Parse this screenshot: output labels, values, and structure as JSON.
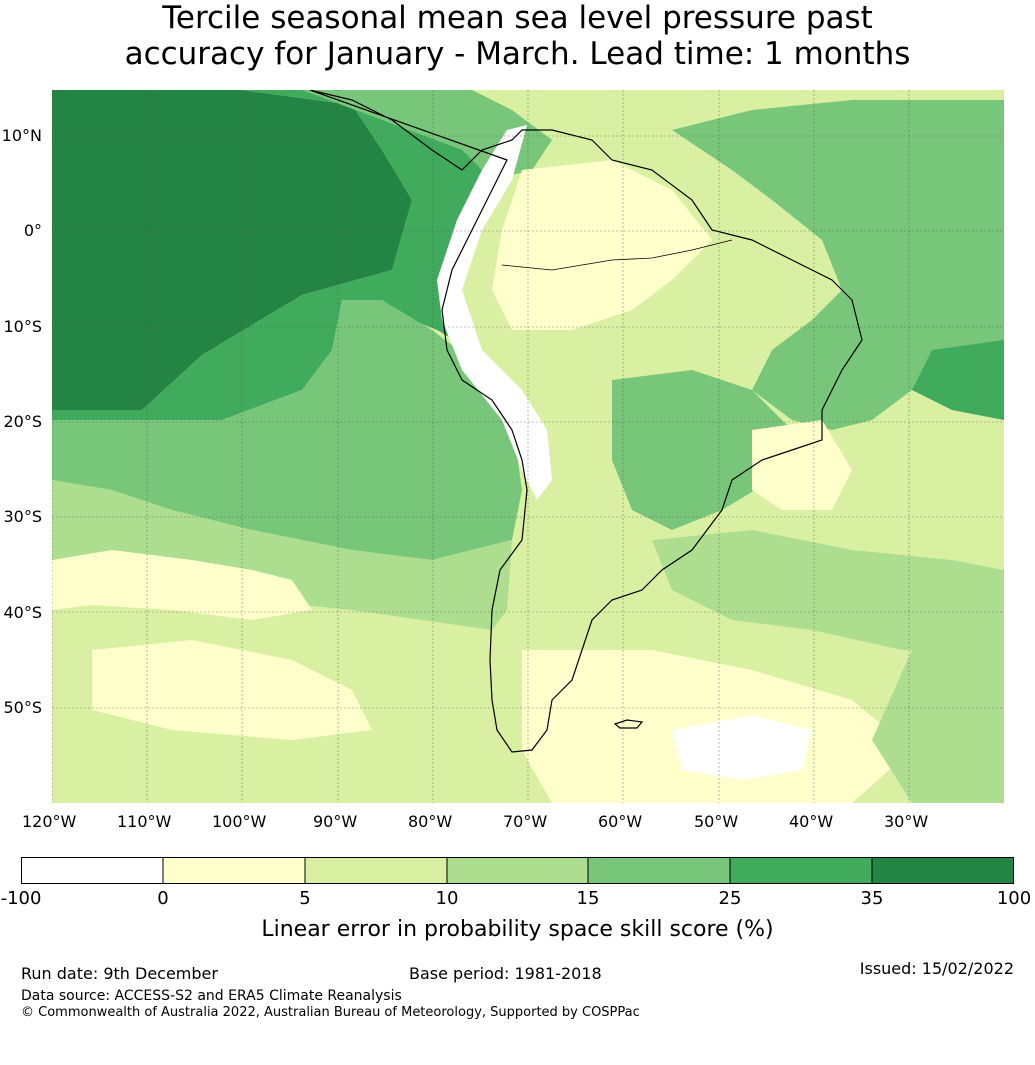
{
  "title_line1": "Tercile seasonal mean sea level pressure past",
  "title_line2": "accuracy for January - March. Lead time: 1 months",
  "lat_labels": [
    "10°N",
    "0°",
    "10°S",
    "20°S",
    "30°S",
    "40°S",
    "50°S"
  ],
  "lon_labels": [
    "120°W",
    "110°W",
    "100°W",
    "90°W",
    "80°W",
    "70°W",
    "60°W",
    "50°W",
    "40°W",
    "30°W"
  ],
  "colorbar": {
    "ticks": [
      "-100",
      "0",
      "5",
      "10",
      "15",
      "25",
      "35",
      "100"
    ],
    "colors": [
      "#ffffff",
      "#ffffcc",
      "#d9f0a3",
      "#addd8e",
      "#78c679",
      "#41ab5d",
      "#238443"
    ],
    "title": "Linear error in probability space skill score (%)"
  },
  "footer": {
    "run_date": "Run date: 9th December",
    "base_period": "Base period: 1981-2018",
    "issued": "Issued: 15/02/2022",
    "data_source": "Data source: ACCESS-S2 and ERA5 Climate Reanalysis",
    "copyright": "© Commonwealth of Australia 2022, Australian Bureau of Meteorology, Supported by COSPPac"
  }
}
